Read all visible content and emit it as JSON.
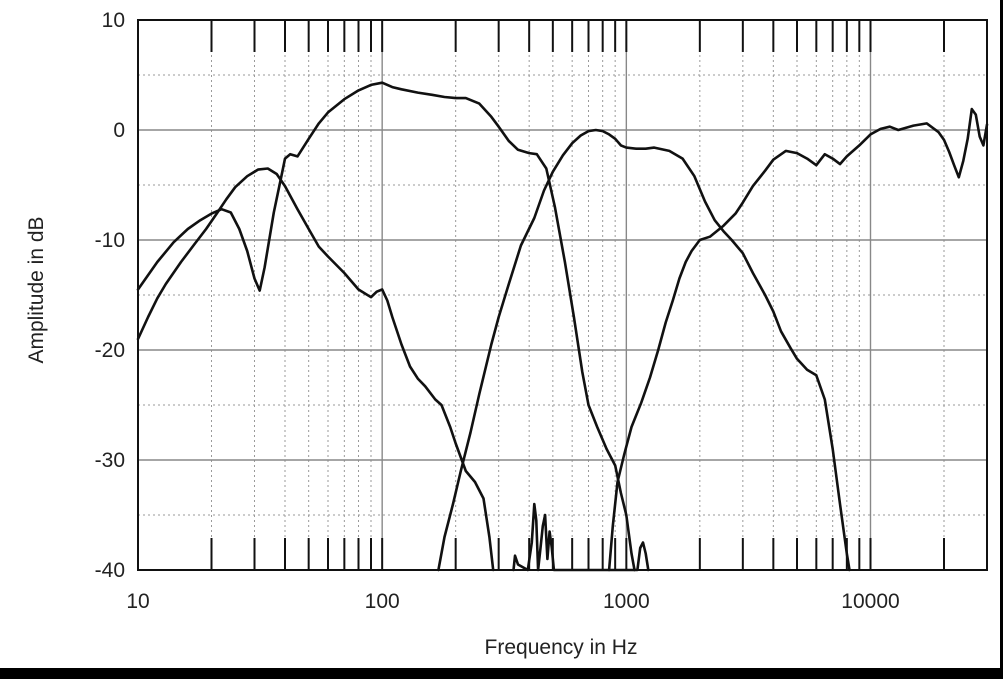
{
  "chart_data": {
    "type": "line",
    "title": "",
    "xlabel": "Frequency in Hz",
    "ylabel": "Amplitude in dB",
    "x_scale": "log",
    "xlim": [
      10,
      30000
    ],
    "ylim": [
      -40,
      10
    ],
    "x_ticks": [
      "10",
      "100",
      "1000",
      "10000"
    ],
    "y_ticks": [
      "10",
      "0",
      "-10",
      "-20",
      "-30",
      "-40"
    ],
    "grid": true,
    "legend": "none",
    "series": [
      {
        "values": [
          [
            10,
            -14.5
          ],
          [
            12,
            -12
          ],
          [
            14,
            -10.2
          ],
          [
            16,
            -9
          ],
          [
            18,
            -8.2
          ],
          [
            20,
            -7.6
          ],
          [
            22,
            -7.2
          ],
          [
            24,
            -7.5
          ],
          [
            26,
            -9
          ],
          [
            28,
            -11
          ],
          [
            30,
            -13.5
          ],
          [
            31.5,
            -14.6
          ],
          [
            33,
            -12.5
          ],
          [
            36,
            -7.5
          ],
          [
            39,
            -3.8
          ],
          [
            40,
            -2.6
          ],
          [
            42,
            -2.2
          ],
          [
            45,
            -2.4
          ],
          [
            50,
            -0.8
          ],
          [
            55,
            0.6
          ],
          [
            60,
            1.6
          ],
          [
            70,
            2.8
          ],
          [
            80,
            3.6
          ],
          [
            90,
            4.1
          ],
          [
            100,
            4.3
          ],
          [
            110,
            3.9
          ],
          [
            120,
            3.7
          ],
          [
            140,
            3.4
          ],
          [
            160,
            3.2
          ],
          [
            180,
            3.0
          ],
          [
            200,
            2.9
          ],
          [
            220,
            2.9
          ],
          [
            250,
            2.4
          ],
          [
            280,
            1.2
          ],
          [
            300,
            0.3
          ],
          [
            330,
            -1.0
          ],
          [
            360,
            -1.8
          ],
          [
            400,
            -2.1
          ],
          [
            430,
            -2.2
          ],
          [
            470,
            -3.5
          ],
          [
            510,
            -7
          ],
          [
            560,
            -12
          ],
          [
            610,
            -17
          ],
          [
            660,
            -22
          ],
          [
            700,
            -25
          ],
          [
            760,
            -27
          ],
          [
            830,
            -29
          ],
          [
            900,
            -30.5
          ],
          [
            950,
            -33
          ],
          [
            1000,
            -35
          ],
          [
            1050,
            -38.5
          ],
          [
            1080,
            -40
          ]
        ]
      },
      {
        "values": [
          [
            10,
            -19
          ],
          [
            11,
            -17
          ],
          [
            12,
            -15.3
          ],
          [
            13,
            -14
          ],
          [
            15,
            -12
          ],
          [
            17,
            -10.4
          ],
          [
            19,
            -9
          ],
          [
            21,
            -7.6
          ],
          [
            23,
            -6.3
          ],
          [
            25,
            -5.2
          ],
          [
            28,
            -4.2
          ],
          [
            31,
            -3.6
          ],
          [
            34,
            -3.5
          ],
          [
            37,
            -4.0
          ],
          [
            40,
            -5.1
          ],
          [
            45,
            -7.2
          ],
          [
            50,
            -9
          ],
          [
            55,
            -10.6
          ],
          [
            60,
            -11.5
          ],
          [
            70,
            -13
          ],
          [
            80,
            -14.5
          ],
          [
            90,
            -15.2
          ],
          [
            95,
            -14.7
          ],
          [
            100,
            -14.5
          ],
          [
            105,
            -15.5
          ],
          [
            110,
            -17
          ],
          [
            120,
            -19.5
          ],
          [
            130,
            -21.5
          ],
          [
            140,
            -22.6
          ],
          [
            150,
            -23.3
          ],
          [
            165,
            -24.5
          ],
          [
            175,
            -25
          ],
          [
            190,
            -27
          ],
          [
            200,
            -28.5
          ],
          [
            220,
            -31
          ],
          [
            240,
            -32
          ],
          [
            260,
            -33.5
          ],
          [
            275,
            -37
          ],
          [
            285,
            -40
          ]
        ]
      },
      {
        "values": [
          [
            170,
            -40
          ],
          [
            180,
            -37
          ],
          [
            195,
            -34
          ],
          [
            210,
            -31
          ],
          [
            230,
            -27.5
          ],
          [
            250,
            -24
          ],
          [
            280,
            -19.5
          ],
          [
            300,
            -17
          ],
          [
            330,
            -14
          ],
          [
            370,
            -10.5
          ],
          [
            420,
            -8.0
          ],
          [
            460,
            -5.5
          ],
          [
            500,
            -3.8
          ],
          [
            550,
            -2.3
          ],
          [
            600,
            -1.2
          ],
          [
            650,
            -0.5
          ],
          [
            700,
            -0.1
          ],
          [
            750,
            0.0
          ],
          [
            800,
            -0.1
          ],
          [
            850,
            -0.4
          ],
          [
            900,
            -0.8
          ],
          [
            950,
            -1.4
          ],
          [
            1000,
            -1.6
          ],
          [
            1100,
            -1.7
          ],
          [
            1200,
            -1.7
          ],
          [
            1300,
            -1.6
          ],
          [
            1500,
            -1.9
          ],
          [
            1700,
            -2.6
          ],
          [
            1900,
            -4.2
          ],
          [
            2100,
            -6.5
          ],
          [
            2300,
            -8.2
          ],
          [
            2500,
            -9.2
          ],
          [
            2700,
            -10
          ],
          [
            3000,
            -11.2
          ],
          [
            3300,
            -13
          ],
          [
            3700,
            -15
          ],
          [
            4000,
            -16.5
          ],
          [
            4300,
            -18.3
          ],
          [
            4700,
            -19.8
          ],
          [
            5000,
            -20.8
          ],
          [
            5500,
            -21.8
          ],
          [
            6000,
            -22.3
          ],
          [
            6500,
            -24.5
          ],
          [
            7000,
            -29
          ],
          [
            7500,
            -34
          ],
          [
            8000,
            -38.5
          ],
          [
            8200,
            -40
          ]
        ]
      },
      {
        "values": [
          [
            850,
            -40
          ],
          [
            880,
            -36
          ],
          [
            920,
            -32
          ],
          [
            980,
            -29.5
          ],
          [
            1050,
            -27
          ],
          [
            1150,
            -24.8
          ],
          [
            1250,
            -22.5
          ],
          [
            1350,
            -20
          ],
          [
            1450,
            -17.5
          ],
          [
            1550,
            -15.5
          ],
          [
            1650,
            -13.5
          ],
          [
            1750,
            -12
          ],
          [
            1850,
            -11
          ],
          [
            2000,
            -10
          ],
          [
            2200,
            -9.7
          ],
          [
            2500,
            -8.7
          ],
          [
            2800,
            -7.6
          ],
          [
            3000,
            -6.6
          ],
          [
            3300,
            -5.1
          ],
          [
            3700,
            -3.7
          ],
          [
            4000,
            -2.7
          ],
          [
            4500,
            -1.9
          ],
          [
            5000,
            -2.1
          ],
          [
            5500,
            -2.6
          ],
          [
            6000,
            -3.2
          ],
          [
            6500,
            -2.2
          ],
          [
            7000,
            -2.6
          ],
          [
            7500,
            -3.1
          ],
          [
            8000,
            -2.4
          ],
          [
            9000,
            -1.4
          ],
          [
            10000,
            -0.4
          ],
          [
            11000,
            0.1
          ],
          [
            12000,
            0.3
          ],
          [
            13000,
            0.0
          ],
          [
            15000,
            0.4
          ],
          [
            17000,
            0.6
          ],
          [
            19000,
            -0.2
          ],
          [
            20000,
            -0.9
          ],
          [
            21000,
            -2.0
          ],
          [
            22000,
            -3.2
          ],
          [
            23000,
            -4.3
          ],
          [
            24000,
            -2.8
          ],
          [
            25000,
            -0.8
          ],
          [
            26000,
            1.9
          ],
          [
            27000,
            1.4
          ],
          [
            28000,
            -0.6
          ],
          [
            29000,
            -1.4
          ],
          [
            30000,
            0.5
          ]
        ]
      },
      {
        "values": [
          [
            345,
            -40
          ],
          [
            350,
            -38.7
          ],
          [
            360,
            -39.5
          ],
          [
            395,
            -40
          ],
          [
            410,
            -37.5
          ],
          [
            420,
            -34
          ],
          [
            428,
            -35.5
          ],
          [
            435,
            -40
          ],
          [
            445,
            -38
          ],
          [
            455,
            -36
          ],
          [
            465,
            -35
          ],
          [
            475,
            -39
          ],
          [
            485,
            -36.5
          ],
          [
            495,
            -38
          ],
          [
            505,
            -40
          ],
          [
            1110,
            -40
          ],
          [
            1140,
            -38
          ],
          [
            1170,
            -37.5
          ],
          [
            1200,
            -38.5
          ],
          [
            1230,
            -40
          ]
        ]
      }
    ]
  }
}
